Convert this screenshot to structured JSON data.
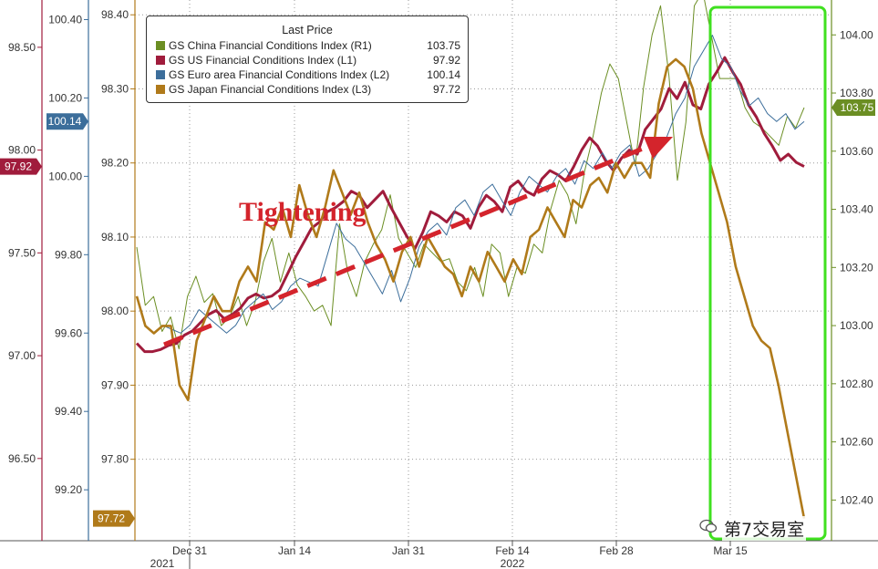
{
  "chart_data": {
    "type": "line",
    "legend": {
      "title": "Last Price",
      "placement": "top-left",
      "entries": [
        {
          "name": "GS China Financial Conditions Index",
          "axis": "(R1)",
          "last": "103.75",
          "color": "#6b8e23"
        },
        {
          "name": "GS US Financial Conditions Index",
          "axis": "(L1)",
          "last": "97.92",
          "color": "#a01c3c"
        },
        {
          "name": "GS Euro area Financial Conditions Index",
          "axis": "(L2)",
          "last": "100.14",
          "color": "#3c6e9b"
        },
        {
          "name": "GS Japan Financial Conditions Index",
          "axis": "(L3)",
          "last": "97.72",
          "color": "#b07a1a"
        }
      ]
    },
    "annotation": "Tightening",
    "x_ticks": [
      "Dec 31",
      "Jan 14",
      "Jan 31",
      "Feb 14",
      "Feb 28",
      "Mar 15"
    ],
    "x_year_labels": [
      "2021",
      "2022"
    ],
    "axes": {
      "L1": {
        "ticks": [
          "96.50",
          "97.00",
          "97.50",
          "98.00",
          "98.50"
        ],
        "range": [
          96.1,
          98.73
        ],
        "badge": "97.92",
        "color": "#a01c3c"
      },
      "L2": {
        "ticks": [
          "99.20",
          "99.40",
          "99.60",
          "99.80",
          "100.00",
          "100.20",
          "100.40"
        ],
        "range": [
          99.07,
          100.45
        ],
        "badge": "100.14",
        "color": "#3c6e9b"
      },
      "L3": {
        "ticks": [
          "97.80",
          "97.90",
          "98.00",
          "98.10",
          "98.20",
          "98.30",
          "98.40"
        ],
        "range": [
          97.69,
          98.42
        ],
        "badge": "97.72",
        "color": "#b07a1a"
      },
      "R1": {
        "ticks": [
          "102.40",
          "102.60",
          "102.80",
          "103.00",
          "103.20",
          "103.40",
          "103.60",
          "103.80",
          "104.00"
        ],
        "range": [
          102.26,
          104.12
        ],
        "badge": "103.75",
        "color": "#6b8e23"
      }
    },
    "series": [
      {
        "name": "GS China Financial Conditions Index",
        "axis": "R1",
        "color": "#6b8e23",
        "values": [
          103.27,
          103.07,
          103.1,
          102.98,
          103.03,
          102.92,
          103.1,
          103.17,
          103.08,
          103.11,
          103.0,
          103.03,
          103.1,
          103.0,
          103.08,
          103.22,
          103.3,
          103.15,
          103.25,
          103.14,
          103.1,
          103.05,
          103.07,
          103.0,
          103.35,
          103.18,
          103.1,
          103.22,
          103.28,
          103.33,
          103.45,
          103.3,
          103.25,
          103.2,
          103.28,
          103.25,
          103.22,
          103.23,
          103.15,
          103.12,
          103.2,
          103.1,
          103.28,
          103.25,
          103.1,
          103.2,
          103.18,
          103.28,
          103.25,
          103.4,
          103.5,
          103.45,
          103.35,
          103.53,
          103.65,
          103.8,
          103.9,
          103.85,
          103.7,
          103.55,
          103.82,
          104.0,
          104.1,
          103.86,
          103.5,
          103.7,
          104.1,
          104.15,
          104.0,
          103.85,
          103.85,
          103.85,
          103.75,
          103.7,
          103.68,
          103.65,
          103.62,
          103.72,
          103.68,
          103.75
        ]
      },
      {
        "name": "GS US Financial Conditions Index",
        "axis": "L1",
        "color": "#a01c3c",
        "values": [
          97.06,
          97.02,
          97.02,
          97.03,
          97.05,
          97.06,
          97.1,
          97.12,
          97.16,
          97.2,
          97.22,
          97.18,
          97.2,
          97.23,
          97.28,
          97.3,
          97.28,
          97.29,
          97.32,
          97.4,
          97.48,
          97.55,
          97.62,
          97.65,
          97.7,
          97.72,
          97.75,
          97.8,
          97.78,
          97.72,
          97.76,
          97.8,
          97.72,
          97.65,
          97.58,
          97.52,
          97.6,
          97.7,
          97.68,
          97.65,
          97.7,
          97.68,
          97.62,
          97.72,
          97.78,
          97.75,
          97.7,
          97.82,
          97.85,
          97.8,
          97.78,
          97.86,
          97.9,
          97.88,
          97.85,
          97.92,
          98.0,
          98.06,
          98.02,
          97.95,
          97.9,
          97.96,
          98.0,
          97.98,
          98.1,
          98.15,
          98.2,
          98.3,
          98.25,
          98.33,
          98.22,
          98.2,
          98.32,
          98.38,
          98.45,
          98.38,
          98.32,
          98.22,
          98.16,
          98.08,
          98.02,
          97.95,
          97.98,
          97.94,
          97.92
        ]
      },
      {
        "name": "GS Euro area Financial Conditions Index",
        "axis": "L2",
        "color": "#3c6e9b",
        "values": [
          99.6,
          99.62,
          99.61,
          99.6,
          99.62,
          99.66,
          99.64,
          99.62,
          99.6,
          99.62,
          99.66,
          99.68,
          99.7,
          99.66,
          99.68,
          99.72,
          99.74,
          99.73,
          99.72,
          99.8,
          99.88,
          99.84,
          99.82,
          99.78,
          99.74,
          99.7,
          99.76,
          99.68,
          99.74,
          99.82,
          99.86,
          99.88,
          99.85,
          99.92,
          99.94,
          99.9,
          99.96,
          99.98,
          99.94,
          99.9,
          99.96,
          100.0,
          99.98,
          99.96,
          100.0,
          100.02,
          99.98,
          100.04,
          100.02,
          100.06,
          100.02,
          100.06,
          100.08,
          100.0,
          100.02,
          100.06,
          100.1,
          100.16,
          100.2,
          100.28,
          100.32,
          100.36,
          100.3,
          100.28,
          100.22,
          100.18,
          100.2,
          100.16,
          100.14,
          100.16,
          100.12,
          100.14
        ]
      },
      {
        "name": "GS Japan Financial Conditions Index",
        "axis": "L3",
        "color": "#b07a1a",
        "values": [
          98.02,
          97.98,
          97.97,
          97.98,
          97.98,
          97.9,
          97.88,
          97.96,
          97.99,
          98.02,
          98.0,
          98.0,
          98.04,
          98.06,
          98.04,
          98.12,
          98.11,
          98.14,
          98.1,
          98.17,
          98.13,
          98.1,
          98.14,
          98.19,
          98.16,
          98.13,
          98.16,
          98.12,
          98.09,
          98.07,
          98.04,
          98.08,
          98.1,
          98.06,
          98.1,
          98.08,
          98.06,
          98.05,
          98.02,
          98.06,
          98.04,
          98.08,
          98.06,
          98.04,
          98.07,
          98.05,
          98.1,
          98.11,
          98.14,
          98.12,
          98.1,
          98.15,
          98.14,
          98.17,
          98.18,
          98.16,
          98.2,
          98.18,
          98.2,
          98.2,
          98.18,
          98.28,
          98.33,
          98.34,
          98.33,
          98.3,
          98.24,
          98.2,
          98.16,
          98.12,
          98.06,
          98.02,
          97.98,
          97.96,
          97.95,
          97.9,
          97.84,
          97.78,
          97.72
        ]
      },
      {
        "name": "Tightening trend",
        "axis": "L3",
        "color": "#d4242c",
        "values": []
      }
    ]
  },
  "watermark": "第7交易室"
}
